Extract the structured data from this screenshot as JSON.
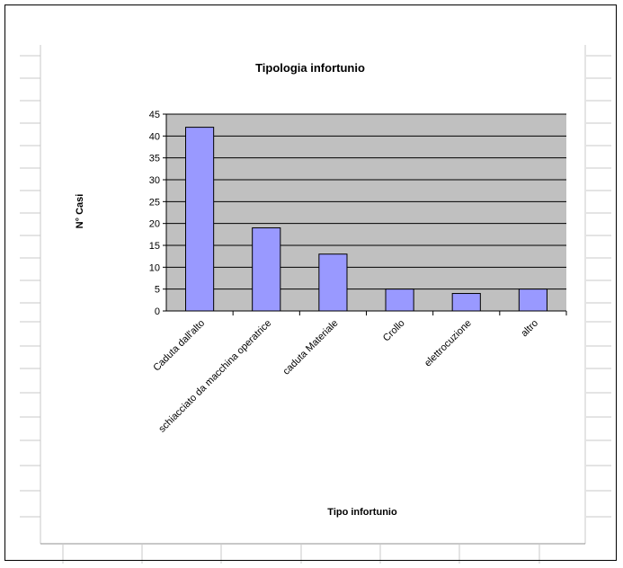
{
  "chart_data": {
    "type": "bar",
    "title": "Tipologia infortunio",
    "xlabel": "Tipo infortunio",
    "ylabel": "N° Casi",
    "categories": [
      "Caduta dall'alto",
      "schiacciato da macchina operatrice",
      "caduta Materiale",
      "Crollo",
      "elettrocuzione",
      "altro"
    ],
    "values": [
      42,
      19,
      13,
      5,
      4,
      5
    ],
    "ylim": [
      0,
      45
    ],
    "yticks": [
      0,
      5,
      10,
      15,
      20,
      25,
      30,
      35,
      40,
      45
    ],
    "grid": true,
    "legend": "none",
    "colors": {
      "bar": "#9999ff",
      "plot_background": "#c0c0c0",
      "gridline": "#000000",
      "spreadsheet_line": "#c8c8c8"
    }
  }
}
